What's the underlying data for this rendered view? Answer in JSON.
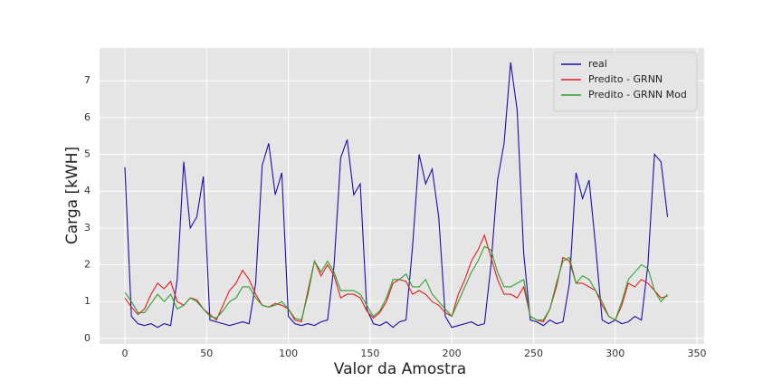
{
  "chart_data": {
    "type": "line",
    "xlabel": "Valor da Amostra",
    "ylabel": "Carga [kWH]",
    "x": [
      0,
      4,
      8,
      12,
      16,
      20,
      24,
      28,
      32,
      36,
      40,
      44,
      48,
      52,
      56,
      60,
      64,
      68,
      72,
      76,
      80,
      84,
      88,
      92,
      96,
      100,
      104,
      108,
      112,
      116,
      120,
      124,
      128,
      132,
      136,
      140,
      144,
      148,
      152,
      156,
      160,
      164,
      168,
      172,
      176,
      180,
      184,
      188,
      192,
      196,
      200,
      204,
      208,
      212,
      216,
      220,
      224,
      228,
      232,
      236,
      240,
      244,
      248,
      252,
      256,
      260,
      264,
      268,
      272,
      276,
      280,
      284,
      288,
      292,
      296,
      300,
      304,
      308,
      312,
      316,
      320,
      324,
      328,
      332
    ],
    "series": [
      {
        "name": "real",
        "color": "#1a0dab",
        "values": [
          4.65,
          0.6,
          0.4,
          0.35,
          0.4,
          0.3,
          0.4,
          0.35,
          1.6,
          4.8,
          3.0,
          3.3,
          4.4,
          0.5,
          0.45,
          0.4,
          0.35,
          0.4,
          0.45,
          0.4,
          1.5,
          4.7,
          5.3,
          3.9,
          4.5,
          0.6,
          0.4,
          0.35,
          0.4,
          0.35,
          0.45,
          0.5,
          2.0,
          4.9,
          5.4,
          3.9,
          4.2,
          0.8,
          0.4,
          0.35,
          0.45,
          0.3,
          0.45,
          0.5,
          2.5,
          5.0,
          4.2,
          4.6,
          3.3,
          0.6,
          0.3,
          0.35,
          0.4,
          0.45,
          0.35,
          0.4,
          2.0,
          4.3,
          5.3,
          7.5,
          6.2,
          2.3,
          0.5,
          0.45,
          0.35,
          0.5,
          0.4,
          0.45,
          1.5,
          4.5,
          3.8,
          4.3,
          2.5,
          0.5,
          0.4,
          0.5,
          0.4,
          0.45,
          0.6,
          0.5,
          2.0,
          5.0,
          4.8,
          3.3
        ]
      },
      {
        "name": "Predito - GRNN",
        "color": "#e31a1c",
        "values": [
          1.1,
          0.85,
          0.65,
          0.8,
          1.2,
          1.5,
          1.35,
          1.55,
          1.0,
          0.9,
          1.1,
          1.05,
          0.8,
          0.65,
          0.5,
          0.9,
          1.3,
          1.5,
          1.85,
          1.6,
          1.2,
          0.9,
          0.85,
          0.95,
          0.9,
          0.8,
          0.5,
          0.45,
          1.3,
          2.1,
          1.7,
          2.0,
          1.7,
          1.1,
          1.2,
          1.2,
          1.1,
          0.75,
          0.55,
          0.7,
          1.0,
          1.5,
          1.6,
          1.55,
          1.2,
          1.3,
          1.2,
          1.0,
          0.9,
          0.7,
          0.6,
          1.2,
          1.6,
          2.1,
          2.4,
          2.8,
          2.2,
          1.6,
          1.2,
          1.2,
          1.1,
          1.4,
          0.6,
          0.5,
          0.45,
          0.8,
          1.4,
          2.2,
          2.1,
          1.5,
          1.5,
          1.4,
          1.3,
          0.9,
          0.6,
          0.5,
          0.9,
          1.5,
          1.4,
          1.6,
          1.5,
          1.3,
          1.1,
          1.15
        ]
      },
      {
        "name": "Predito - GRNN Mod",
        "color": "#2ca02c",
        "values": [
          1.25,
          1.0,
          0.7,
          0.7,
          0.95,
          1.2,
          1.0,
          1.2,
          0.8,
          0.9,
          1.1,
          1.0,
          0.8,
          0.6,
          0.55,
          0.75,
          1.0,
          1.1,
          1.4,
          1.4,
          1.1,
          0.9,
          0.85,
          0.9,
          1.0,
          0.8,
          0.55,
          0.5,
          1.2,
          2.1,
          1.8,
          2.1,
          1.8,
          1.3,
          1.3,
          1.3,
          1.2,
          0.9,
          0.6,
          0.75,
          1.1,
          1.6,
          1.6,
          1.75,
          1.4,
          1.4,
          1.6,
          1.2,
          1.0,
          0.8,
          0.6,
          1.0,
          1.4,
          1.8,
          2.1,
          2.5,
          2.4,
          1.8,
          1.4,
          1.4,
          1.5,
          1.6,
          0.6,
          0.5,
          0.5,
          0.8,
          1.5,
          2.1,
          2.2,
          1.5,
          1.7,
          1.6,
          1.3,
          1.0,
          0.6,
          0.5,
          1.0,
          1.6,
          1.8,
          2.0,
          1.9,
          1.3,
          1.0,
          1.2
        ]
      }
    ],
    "xlim": [
      -15.5,
      354.4
    ],
    "ylim": [
      -0.15,
      7.89
    ],
    "xticks": [
      0,
      50,
      100,
      150,
      200,
      250,
      300,
      350
    ],
    "yticks": [
      0,
      1,
      2,
      3,
      4,
      5,
      6,
      7
    ],
    "grid": true,
    "legend": "upper right"
  }
}
